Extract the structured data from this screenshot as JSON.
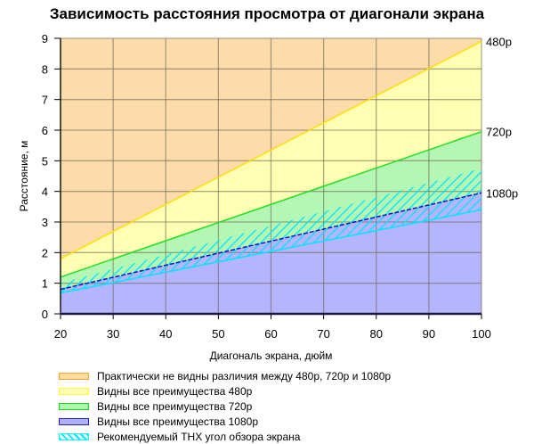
{
  "chart_data": {
    "type": "area",
    "title": "Зависимость расстояния просмотра от диагонали экрана",
    "xlabel": "Диагональ экрана, дюйм",
    "ylabel": "Расстояние, м",
    "xlim": [
      20,
      100
    ],
    "ylim": [
      0,
      9
    ],
    "x_ticks": [
      20,
      30,
      40,
      50,
      60,
      70,
      80,
      90,
      100
    ],
    "y_ticks": [
      0,
      1,
      2,
      3,
      4,
      5,
      6,
      7,
      8,
      9
    ],
    "grid": true,
    "x": [
      20,
      100
    ],
    "series": [
      {
        "name": "480p",
        "values": [
          1.8,
          8.9
        ],
        "color": "#ffff00"
      },
      {
        "name": "720p",
        "values": [
          1.2,
          5.95
        ],
        "color": "#00dd00"
      },
      {
        "name": "1080p",
        "values": [
          0.8,
          3.95
        ],
        "color": "#0000cc"
      },
      {
        "name": "THX lower",
        "values": [
          0.68,
          3.4
        ],
        "color": "#00ffff"
      },
      {
        "name": "THX upper",
        "values": [
          1.0,
          4.75
        ],
        "color": "#00ffff"
      }
    ],
    "line_labels": [
      "480p",
      "720p",
      "1080p"
    ],
    "legend": [
      {
        "label": "Практически не видны различия между 480p, 720p и 1080p",
        "fill": "#fbdca8",
        "border": "#f5a623"
      },
      {
        "label": "Видны все преимущества 480p",
        "fill": "#ffffb0",
        "border": "#ffff40"
      },
      {
        "label": "Видны все преимущества 720p",
        "fill": "#b0f5b0",
        "border": "#20cc20"
      },
      {
        "label": "Видны все преимущества 1080p",
        "fill": "#b0b0ff",
        "border": "#2020cc"
      },
      {
        "label": "Рекомендуемый THX угол обзора экрана",
        "fill": "hatch",
        "border": "#00ffff"
      }
    ],
    "legend_position": "bottom"
  }
}
